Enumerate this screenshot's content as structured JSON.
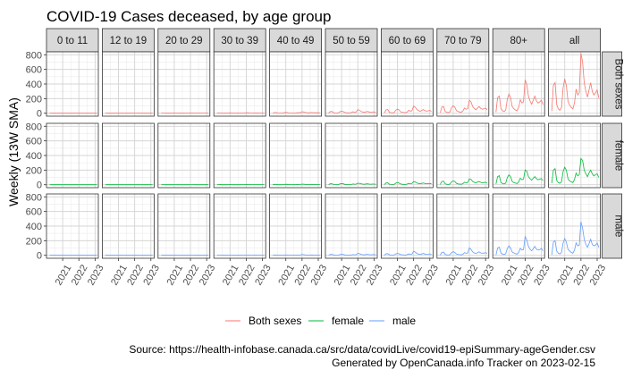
{
  "chart_data": {
    "type": "line",
    "title": "COVID-19 Cases deceased, by age group",
    "ylabel": "Weekly (13W SMA)",
    "xlabel": "",
    "ylim": [
      -40,
      840
    ],
    "yticks": [
      0,
      200,
      400,
      600,
      800
    ],
    "xlim": [
      2020.0,
      2023.2
    ],
    "xticks": [
      "2021",
      "2022",
      "2023"
    ],
    "xtick_values": [
      2021,
      2022,
      2023
    ],
    "grid": true,
    "legend_placement": "bottom",
    "columns": [
      "0 to 11",
      "12 to 19",
      "20 to 29",
      "30 to 39",
      "40 to 49",
      "50 to 59",
      "60 to 69",
      "70 to 79",
      "80+",
      "all"
    ],
    "rows": [
      "Both sexes",
      "female",
      "male"
    ],
    "series": [
      {
        "name": "Both sexes",
        "color": "#F8766D"
      },
      {
        "name": "female",
        "color": "#00BA38"
      },
      {
        "name": "male",
        "color": "#619CFF"
      }
    ],
    "x_dates": [
      2020.2,
      2020.3,
      2020.4,
      2020.5,
      2020.6,
      2020.7,
      2020.8,
      2020.9,
      2021.0,
      2021.1,
      2021.2,
      2021.3,
      2021.4,
      2021.5,
      2021.6,
      2021.7,
      2021.8,
      2021.9,
      2022.0,
      2022.1,
      2022.2,
      2022.3,
      2022.4,
      2022.5,
      2022.6,
      2022.7,
      2022.8,
      2022.9,
      2023.0,
      2023.1
    ],
    "values_all_both": [
      30,
      380,
      420,
      120,
      60,
      40,
      80,
      350,
      470,
      380,
      160,
      110,
      80,
      60,
      140,
      330,
      250,
      280,
      820,
      700,
      420,
      300,
      220,
      320,
      420,
      300,
      250,
      280,
      320,
      210
    ],
    "values_all_female": [
      20,
      200,
      220,
      60,
      30,
      20,
      40,
      180,
      240,
      200,
      80,
      50,
      40,
      30,
      70,
      160,
      120,
      140,
      360,
      330,
      200,
      150,
      110,
      160,
      200,
      150,
      120,
      140,
      150,
      100
    ],
    "values_all_male": [
      10,
      180,
      200,
      60,
      30,
      20,
      40,
      170,
      230,
      180,
      80,
      60,
      40,
      30,
      70,
      170,
      130,
      140,
      460,
      370,
      220,
      150,
      110,
      160,
      220,
      150,
      130,
      140,
      170,
      110
    ],
    "age_scale": [
      0.001,
      0.002,
      0.005,
      0.01,
      0.025,
      0.06,
      0.12,
      0.22,
      0.56,
      1.0
    ]
  },
  "source_line": "Source: https://health-infobase.canada.ca/src/data/covidLive/covid19-epiSummary-ageGender.csv",
  "generated_line": "Generated by OpenCanada.info Tracker on 2023-02-15"
}
